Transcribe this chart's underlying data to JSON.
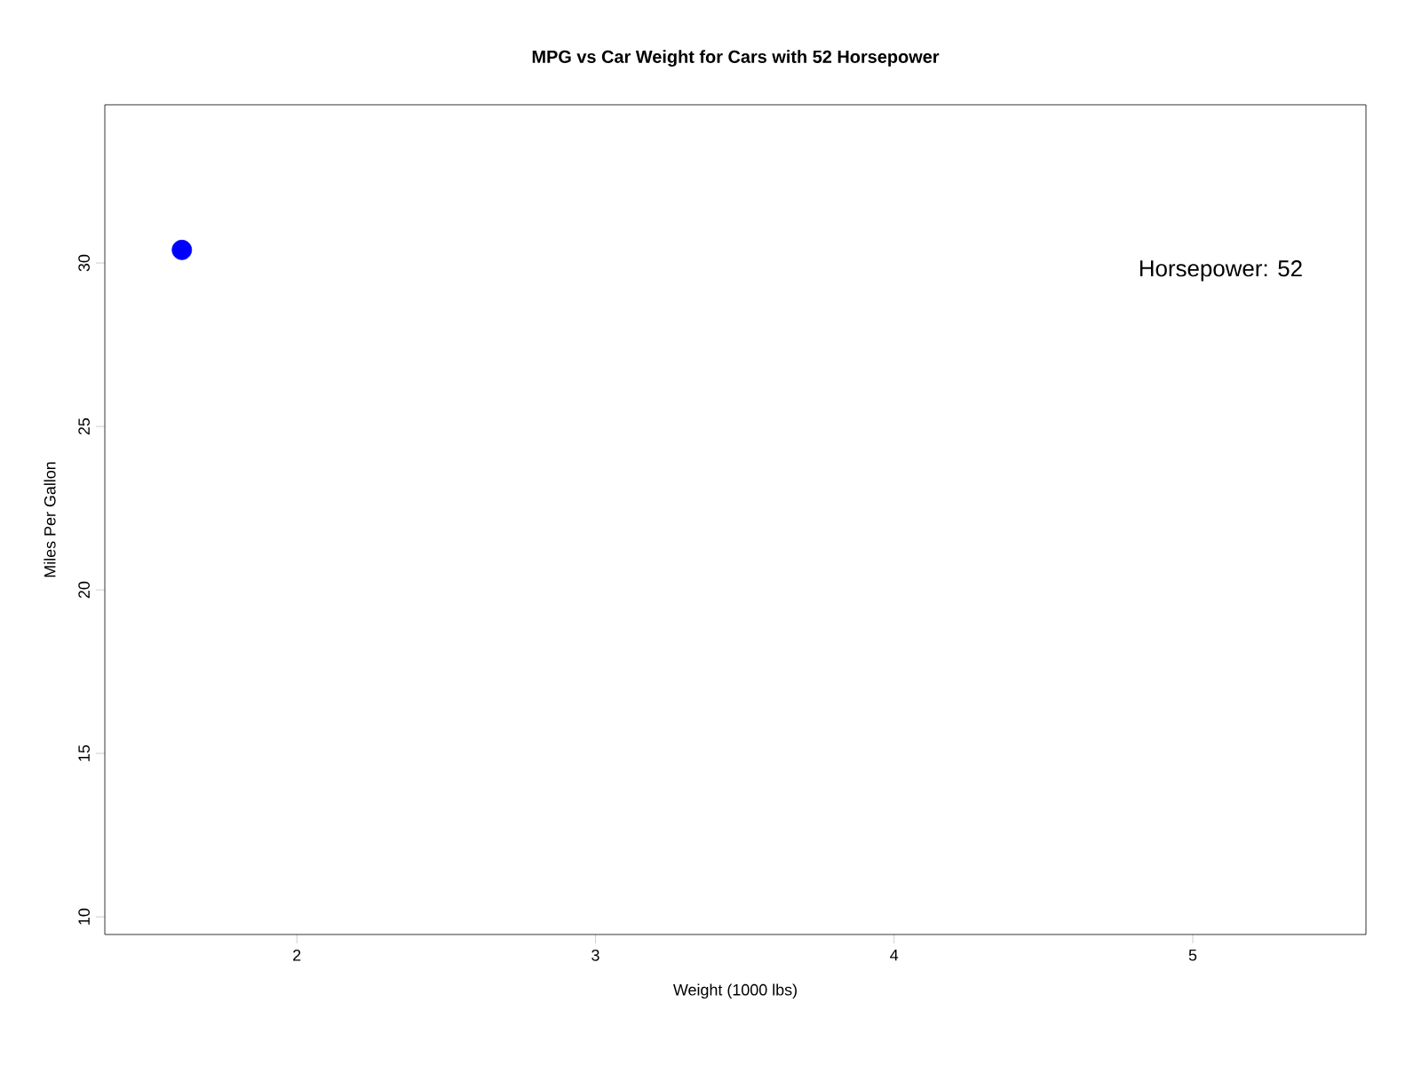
{
  "chart_data": {
    "type": "scatter",
    "title": "MPG vs Car Weight for Cars with 52 Horsepower",
    "xlabel": "Weight (1000 lbs)",
    "ylabel": "Miles Per Gallon",
    "x": [
      1.615
    ],
    "values": [
      30.4
    ],
    "color": "#0000ff",
    "marker": "circle",
    "xlim": [
      1.357,
      5.58
    ],
    "ylim": [
      9.46,
      34.84
    ],
    "xticks": [
      2,
      3,
      4,
      5
    ],
    "yticks": [
      10,
      15,
      20,
      25,
      30
    ],
    "annotations": [
      "Horsepower: 52"
    ]
  }
}
